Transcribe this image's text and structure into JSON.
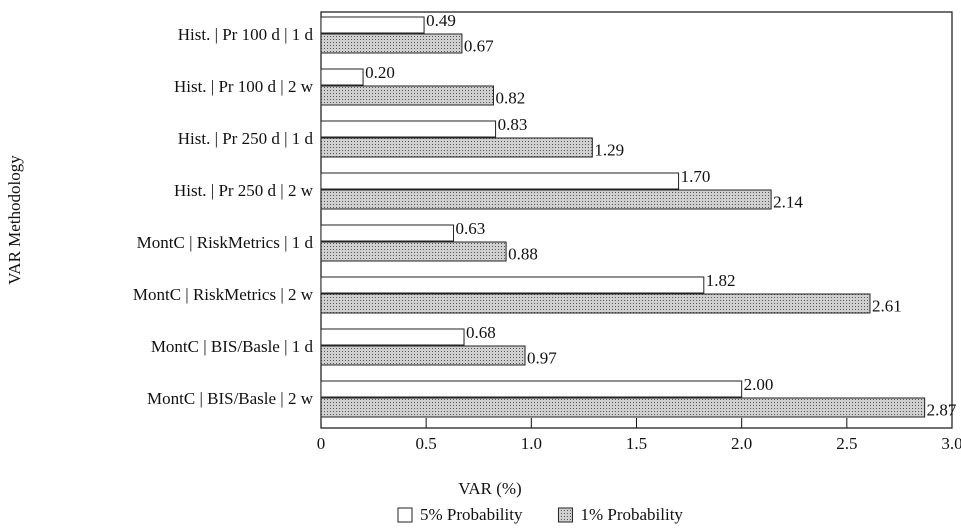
{
  "chart_data": {
    "type": "bar",
    "orientation": "horizontal",
    "x_label": "VAR (%)",
    "y_label": "VAR Methodology",
    "categories": [
      "Hist. | Pr 100 d | 1 d",
      "Hist. | Pr 100 d | 2 w",
      "Hist. | Pr 250 d | 1 d",
      "Hist. | Pr 250 d | 2 w",
      "MontC | RiskMetrics | 1 d",
      "MontC | RiskMetrics | 2 w",
      "MontC | BIS/Basle | 1 d",
      "MontC | BIS/Basle | 2 w"
    ],
    "series": [
      {
        "name": "5% Probability",
        "color": "#ffffff",
        "values": [
          0.49,
          0.2,
          0.83,
          1.7,
          0.63,
          1.82,
          0.68,
          2.0
        ],
        "value_labels": [
          "0.49",
          "0.20",
          "0.83",
          "1.70",
          "0.63",
          "1.82",
          "0.68",
          "2.00"
        ]
      },
      {
        "name": "1% Probability",
        "color": "#b8b8b8",
        "values": [
          0.67,
          0.82,
          1.29,
          2.14,
          0.88,
          2.61,
          0.97,
          2.87
        ],
        "value_labels": [
          "0.67",
          "0.82",
          "1.29",
          "2.14",
          "0.88",
          "2.61",
          "0.97",
          "2.87"
        ]
      }
    ],
    "xlim": [
      0,
      3
    ],
    "xticks": [
      0,
      0.5,
      {
        "value": 1,
        "label": "1.0"
      },
      1.5,
      {
        "value": 2,
        "label": "2.0"
      },
      2.5,
      {
        "value": 3,
        "label": "3.0"
      }
    ],
    "legend": "bottom"
  }
}
